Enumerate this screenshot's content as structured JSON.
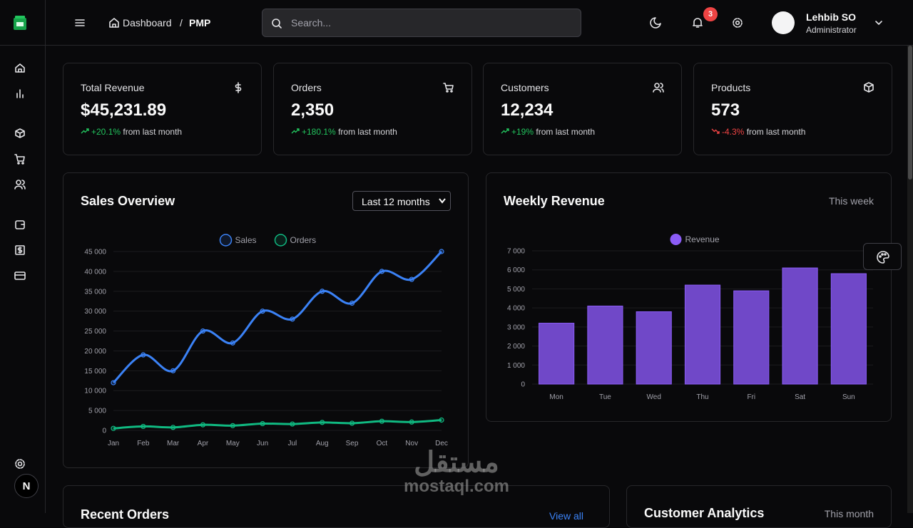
{
  "header": {
    "breadcrumb": [
      "Dashboard",
      "PMP"
    ],
    "separator": "/",
    "search_placeholder": "Search...",
    "notification_count": "3",
    "user": {
      "name": "Lehbib SO",
      "role": "Administrator"
    }
  },
  "sidebar": {
    "badge": "N"
  },
  "stats": [
    {
      "title": "Total Revenue",
      "value": "$45,231.89",
      "change": "+20.1%",
      "note": "from last month",
      "trend": "up"
    },
    {
      "title": "Orders",
      "value": "2,350",
      "change": "+180.1%",
      "note": "from last month",
      "trend": "up"
    },
    {
      "title": "Customers",
      "value": "12,234",
      "change": "+19%",
      "note": "from last month",
      "trend": "up"
    },
    {
      "title": "Products",
      "value": "573",
      "change": "-4.3%",
      "note": "from last month",
      "trend": "down"
    }
  ],
  "sales_chart": {
    "type": "line",
    "title": "Sales Overview",
    "period": "Last 12 months",
    "categories": [
      "Jan",
      "Feb",
      "Mar",
      "Apr",
      "May",
      "Jun",
      "Jul",
      "Aug",
      "Sep",
      "Oct",
      "Nov",
      "Dec"
    ],
    "series": [
      {
        "name": "Sales",
        "color": "#3b82f6",
        "values": [
          12000,
          19000,
          15000,
          25000,
          22000,
          30000,
          28000,
          35000,
          32000,
          40000,
          38000,
          45000
        ]
      },
      {
        "name": "Orders",
        "color": "#10b981",
        "values": [
          500,
          1000,
          750,
          1400,
          1200,
          1700,
          1600,
          2000,
          1800,
          2300,
          2100,
          2600
        ]
      }
    ],
    "ylim": [
      0,
      45000
    ],
    "yticks": [
      0,
      {
        "value": 5000,
        "label": "5 000"
      },
      {
        "value": 10000,
        "label": "10 000"
      },
      {
        "value": 15000,
        "label": "15 000"
      },
      {
        "value": 20000,
        "label": "20 000"
      },
      {
        "value": 25000,
        "label": "25 000"
      },
      {
        "value": 30000,
        "label": "30 000"
      },
      {
        "value": 35000,
        "label": "35 000"
      },
      {
        "value": 40000,
        "label": "40 000"
      },
      {
        "value": 45000,
        "label": "45 000"
      }
    ],
    "grid": true
  },
  "weekly_chart": {
    "type": "bar",
    "title": "Weekly Revenue",
    "period": "This week",
    "categories": [
      "Mon",
      "Tue",
      "Wed",
      "Thu",
      "Fri",
      "Sat",
      "Sun"
    ],
    "series": [
      {
        "name": "Revenue",
        "color": "#7048c8",
        "values": [
          3200,
          4100,
          3800,
          5200,
          4900,
          6100,
          5800
        ]
      }
    ],
    "ylim": [
      0,
      7000
    ],
    "yticks": [
      0,
      {
        "value": 1000,
        "label": "1 000"
      },
      {
        "value": 2000,
        "label": "2 000"
      },
      {
        "value": 3000,
        "label": "3 000"
      },
      {
        "value": 4000,
        "label": "4 000"
      },
      {
        "value": 5000,
        "label": "5 000"
      },
      {
        "value": 6000,
        "label": "6 000"
      },
      {
        "value": 7000,
        "label": "7 000"
      }
    ],
    "grid": true
  },
  "bottom": {
    "recent_orders": {
      "title": "Recent Orders",
      "link": "View all"
    },
    "customer_analytics": {
      "title": "Customer Analytics",
      "period": "This month"
    }
  },
  "watermark": {
    "arabic": "مستقل",
    "latin": "mostaql.com"
  }
}
